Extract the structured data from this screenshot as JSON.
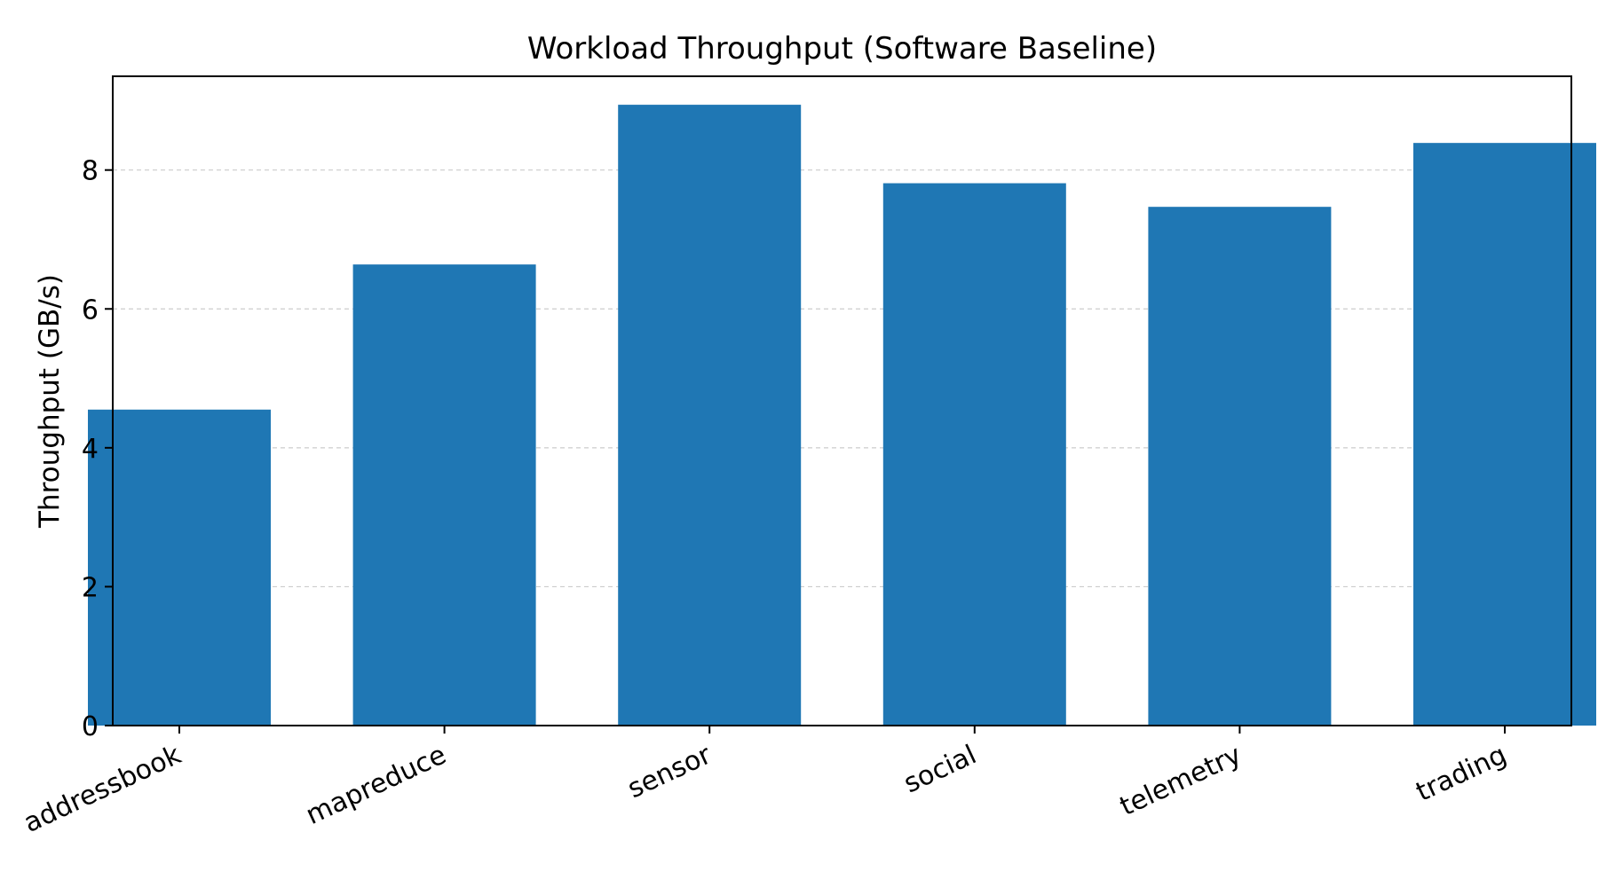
{
  "chart_data": {
    "type": "bar",
    "title": "Workload Throughput (Software Baseline)",
    "xlabel": "",
    "ylabel": "Throughput (GB/s)",
    "categories": [
      "addressbook",
      "mapreduce",
      "sensor",
      "social",
      "telemetry",
      "trading"
    ],
    "values": [
      4.55,
      6.64,
      8.94,
      7.81,
      7.47,
      8.39
    ],
    "ylim": [
      0,
      9.35
    ],
    "yticks": [
      "0",
      "2",
      "4",
      "6",
      "8"
    ],
    "grid": "horizontal dashed",
    "bar_color": "#1f77b4",
    "grid_color": "#cccccc"
  }
}
